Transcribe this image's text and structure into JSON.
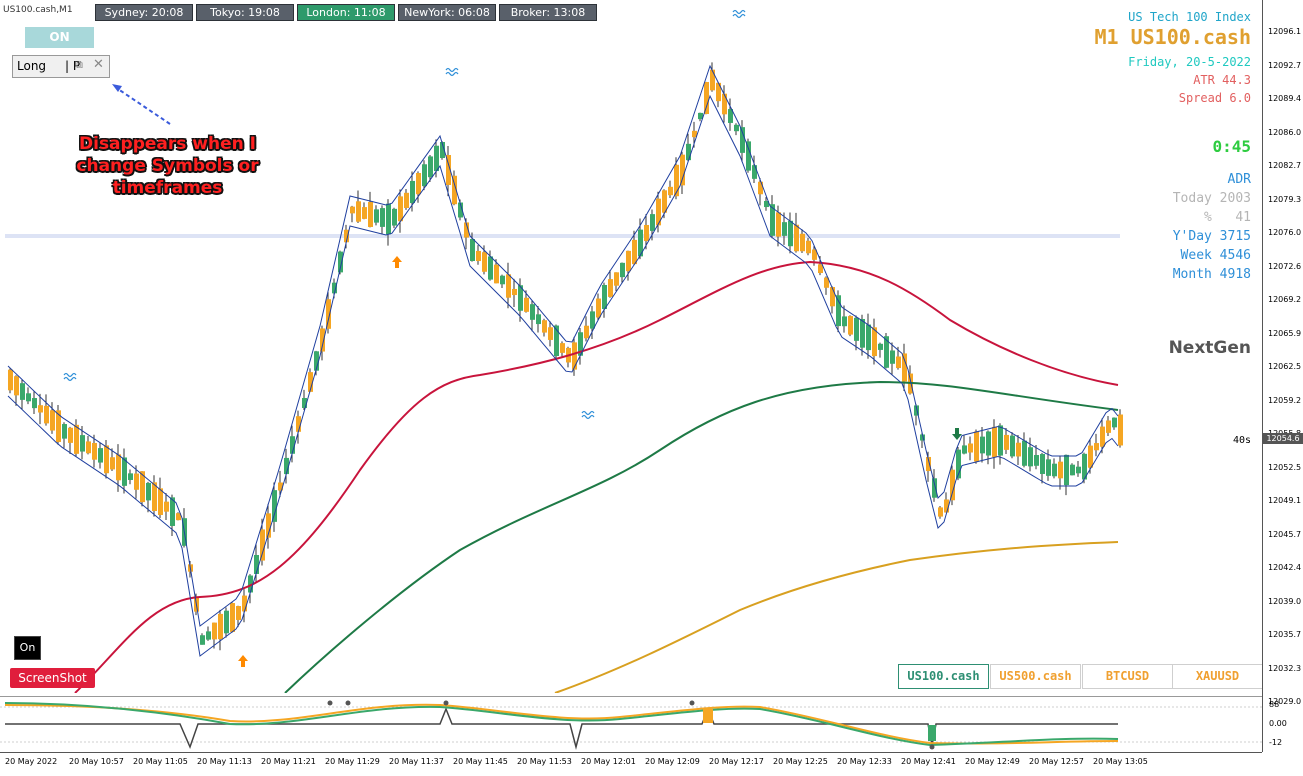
{
  "symbol_label": "US100.cash,M1",
  "sessions": [
    {
      "label": "Sydney: 20:08",
      "active": false
    },
    {
      "label": "Tokyo: 19:08",
      "active": false
    },
    {
      "label": "London: 11:08",
      "active": true
    },
    {
      "label": "NewYork: 06:08",
      "active": false
    },
    {
      "label": "Broker: 13:08",
      "active": false
    }
  ],
  "trade_panel": {
    "on_label": "ON",
    "mode_label": "Long",
    "p_label": "| P",
    "restore_icon": "restore-window-icon",
    "close_icon": "close-icon"
  },
  "annotation": {
    "text_lines": [
      "Disappears when I",
      "change Symbols or",
      "timeframes"
    ],
    "color": "#ff2020"
  },
  "info_panel": {
    "index_name": "US Tech 100 Index",
    "title": "M1 US100.cash",
    "date": "Friday, 20-5-2022",
    "atr": "ATR 44.3",
    "spread": "Spread 6.0",
    "timer": "0:45",
    "adr_title": "ADR",
    "adr_today": "Today 2003",
    "adr_pct": "%   41",
    "adr_yday": "Y'Day 3715",
    "adr_week": "Week 4546",
    "adr_month": "Month 4918",
    "brand": "NextGen"
  },
  "bar_countdown": "40s",
  "current_price": "12054.6",
  "buttons": {
    "on_small": "On",
    "screenshot": "ScreenShot"
  },
  "symbol_buttons": [
    {
      "label": "US100.cash",
      "state": "active"
    },
    {
      "label": "US500.cash",
      "state": "orange"
    },
    {
      "label": "BTCUSD",
      "state": "gray"
    },
    {
      "label": "XAUUSD",
      "state": "gray"
    }
  ],
  "price_axis": [
    "12096.1",
    "12092.7",
    "12089.4",
    "12086.0",
    "12082.7",
    "12079.3",
    "12076.0",
    "12072.6",
    "12069.2",
    "12065.9",
    "12062.5",
    "12059.2",
    "12055.8",
    "12052.5",
    "12049.1",
    "12045.7",
    "12042.4",
    "12039.0",
    "12035.7",
    "12032.3",
    "12029.0"
  ],
  "sub_axis": [
    "88",
    "0.00",
    "-12"
  ],
  "time_axis": [
    "20 May 2022",
    "20 May 10:57",
    "20 May 11:05",
    "20 May 11:13",
    "20 May 11:21",
    "20 May 11:29",
    "20 May 11:37",
    "20 May 11:45",
    "20 May 11:53",
    "20 May 12:01",
    "20 May 12:09",
    "20 May 12:17",
    "20 May 12:25",
    "20 May 12:33",
    "20 May 12:41",
    "20 May 12:49",
    "20 May 12:57",
    "20 May 13:05"
  ],
  "colors": {
    "bull": "#3aa86b",
    "bear": "#f5a623",
    "fast_ma": "#1f3f9f",
    "ma_red": "#c8143c",
    "ma_green": "#1e7a46",
    "ma_gold": "#d8a020",
    "timer": "#2ecc40",
    "index_name": "#1fa5c9",
    "title": "#e0a030",
    "date": "#1fc9c0",
    "atr": "#e26060",
    "adr": "#2e8fd8",
    "adr_muted": "#b5b5b5",
    "brand": "#555555"
  }
}
